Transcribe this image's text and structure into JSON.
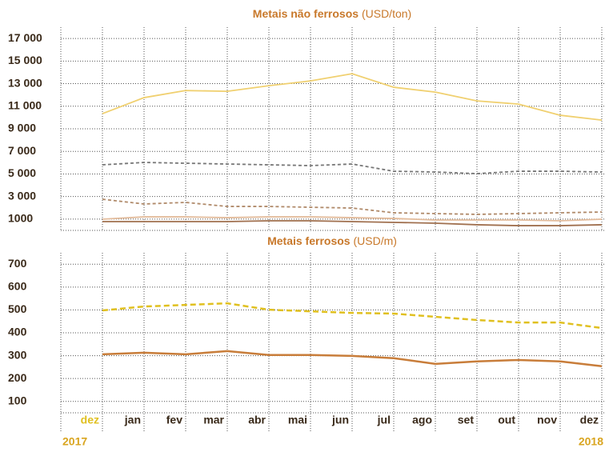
{
  "chart_data": [
    {
      "type": "line",
      "title": "Metais não ferrosos",
      "title_unit": "(USD/ton)",
      "ylim": [
        0,
        18000
      ],
      "yticks": [
        1000,
        {
          "value": 3000,
          "label": "3 000"
        },
        {
          "value": 5000,
          "label": "5 000"
        },
        {
          "value": 7000,
          "label": "7 000"
        },
        {
          "value": 9000,
          "label": "9 000"
        },
        {
          "value": 11000,
          "label": "11 000"
        },
        {
          "value": 13000,
          "label": "13 000"
        },
        {
          "value": 15000,
          "label": "15 000"
        },
        {
          "value": 17000,
          "label": "17 000"
        }
      ],
      "grid": true,
      "series": [
        {
          "color": "#f0d070",
          "dashed": false,
          "values": [
            10340,
            11760,
            12390,
            12320,
            12820,
            13240,
            13880,
            12680,
            12250,
            11470,
            11190,
            10200,
            9770
          ]
        },
        {
          "color": "#777777",
          "dashed": true,
          "values": [
            5810,
            6020,
            5950,
            5880,
            5810,
            5740,
            5880,
            5240,
            5170,
            5030,
            5240,
            5240,
            5170
          ]
        },
        {
          "color": "#b08a6a",
          "dashed": true,
          "values": [
            2760,
            2340,
            2480,
            2120,
            2120,
            2050,
            1980,
            1560,
            1490,
            1420,
            1490,
            1560,
            1630
          ]
        },
        {
          "color": "#e3bc9c",
          "dashed": false,
          "values": [
            990,
            1200,
            1200,
            1130,
            1200,
            1200,
            1130,
            1060,
            920,
            920,
            920,
            850,
            990
          ]
        },
        {
          "color": "#a0704f",
          "dashed": false,
          "values": [
            780,
            780,
            780,
            780,
            850,
            850,
            780,
            710,
            640,
            500,
            420,
            420,
            500
          ]
        }
      ]
    },
    {
      "type": "line",
      "title": "Metais ferrosos",
      "title_unit": "(USD/m)",
      "ylim": [
        50,
        750
      ],
      "yticks": [
        100,
        200,
        300,
        400,
        500,
        600,
        700
      ],
      "grid": true,
      "categories": [
        "dez",
        "jan",
        "fev",
        "mar",
        "abr",
        "mai",
        "jun",
        "jul",
        "ago",
        "set",
        "out",
        "nov",
        "dez"
      ],
      "years": [
        "2017",
        "2018"
      ],
      "series": [
        {
          "color": "#e0c020",
          "dashed": true,
          "values": [
            498,
            515,
            522,
            529,
            501,
            494,
            487,
            484,
            470,
            456,
            445,
            445,
            421
          ]
        },
        {
          "color": "#c87d3a",
          "dashed": false,
          "values": [
            306,
            313,
            306,
            320,
            303,
            303,
            299,
            289,
            264,
            275,
            281,
            275,
            254
          ]
        }
      ]
    }
  ]
}
